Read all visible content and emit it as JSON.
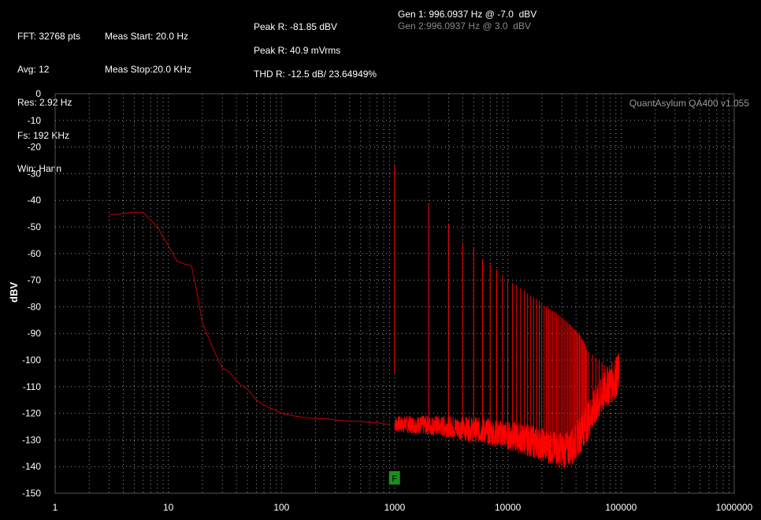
{
  "header": {
    "fft": "FFT: 32768 pts",
    "avg": "Avg: 12",
    "res": "Res: 2.92 Hz",
    "fs": "Fs: 192 KHz",
    "win": "Win: Hann",
    "meas_start": "Meas Start: 20.0 Hz",
    "meas_stop": "Meas Stop:20.0 KHz",
    "peak_dbv": "Peak R: -81.85 dBV",
    "peak_vrms": "Peak R: 40.9 mVrms",
    "thd": "THD R: -12.5 dB/ 23.64949%",
    "gen1": "Gen 1: 996.0937 Hz @ -7.0  dBV",
    "gen2": "Gen 2:996.0937 Hz @ 3.0  dBV"
  },
  "watermark": "QuantAsylum QA400 v1.055",
  "marker_label": "F",
  "chart_data": {
    "type": "line",
    "title": "",
    "xlabel": "",
    "ylabel": "dBV",
    "xscale": "log",
    "xlim": [
      1,
      1000000
    ],
    "ylim": [
      -150,
      0
    ],
    "x_ticks": [
      "1",
      "10",
      "100",
      "1000",
      "10000",
      "100000",
      "1000000"
    ],
    "y_ticks": [
      "0",
      "-10",
      "-20",
      "-30",
      "-40",
      "-50",
      "-60",
      "-70",
      "-80",
      "-90",
      "-100",
      "-110",
      "-120",
      "-130",
      "-140",
      "-150"
    ],
    "grid": true,
    "line_color": "#ff0000",
    "marker_color": "#1a8f1a",
    "series": [
      {
        "x": [
          3,
          4,
          5,
          6,
          8,
          10,
          12,
          14,
          16,
          18,
          20,
          25,
          30,
          35,
          40,
          50,
          60,
          70,
          80,
          100,
          130,
          160,
          200,
          250,
          300,
          400,
          500,
          600,
          700,
          800,
          900
        ],
        "values": [
          -45.5,
          -45,
          -44.5,
          -44.5,
          -50,
          -57,
          -63,
          -64,
          -64.5,
          -75,
          -86,
          -96,
          -103,
          -104.5,
          -108,
          -111,
          -115,
          -117,
          -118,
          -120,
          -121,
          -121.5,
          -122,
          -122,
          -122.5,
          -123,
          -123,
          -123.5,
          -123.5,
          -124,
          -124
        ]
      }
    ],
    "harmonics": [
      {
        "x": 996,
        "y": -27
      },
      {
        "x": 1992,
        "y": -41
      },
      {
        "x": 2988,
        "y": -49
      },
      {
        "x": 3984,
        "y": -56
      },
      {
        "x": 4980,
        "y": -58
      },
      {
        "x": 5977,
        "y": -62
      },
      {
        "x": 6973,
        "y": -64
      },
      {
        "x": 7969,
        "y": -66
      },
      {
        "x": 8965,
        "y": -68
      },
      {
        "x": 9961,
        "y": -70
      },
      {
        "x": 10957,
        "y": -71
      },
      {
        "x": 11953,
        "y": -72
      },
      {
        "x": 12949,
        "y": -73
      },
      {
        "x": 13945,
        "y": -74
      },
      {
        "x": 14941,
        "y": -75
      },
      {
        "x": 15937,
        "y": -76
      },
      {
        "x": 16933,
        "y": -76.5
      },
      {
        "x": 17929,
        "y": -77
      },
      {
        "x": 18926,
        "y": -78
      },
      {
        "x": 19922,
        "y": -79
      },
      {
        "x": 20918,
        "y": -79.5
      },
      {
        "x": 21914,
        "y": -80
      },
      {
        "x": 22910,
        "y": -80.5
      },
      {
        "x": 23906,
        "y": -81
      },
      {
        "x": 24902,
        "y": -81.5
      },
      {
        "x": 25898,
        "y": -82
      },
      {
        "x": 26894,
        "y": -82.5
      },
      {
        "x": 27890,
        "y": -83
      },
      {
        "x": 28886,
        "y": -83.5
      },
      {
        "x": 29882,
        "y": -84
      },
      {
        "x": 30878,
        "y": -84.5
      },
      {
        "x": 31875,
        "y": -85
      },
      {
        "x": 32871,
        "y": -85.5
      },
      {
        "x": 33867,
        "y": -86
      },
      {
        "x": 34863,
        "y": -86.5
      },
      {
        "x": 35859,
        "y": -87
      },
      {
        "x": 36855,
        "y": -87.5
      },
      {
        "x": 37851,
        "y": -88
      },
      {
        "x": 38847,
        "y": -88.5
      },
      {
        "x": 39843,
        "y": -89
      },
      {
        "x": 40839,
        "y": -89.5
      },
      {
        "x": 41835,
        "y": -90
      },
      {
        "x": 42831,
        "y": -90.5
      },
      {
        "x": 43827,
        "y": -91
      },
      {
        "x": 44823,
        "y": -92
      },
      {
        "x": 45820,
        "y": -92.5
      },
      {
        "x": 46816,
        "y": -93
      },
      {
        "x": 47812,
        "y": -94
      },
      {
        "x": 48808,
        "y": -95
      },
      {
        "x": 49804,
        "y": -96
      },
      {
        "x": 52000,
        "y": -97
      },
      {
        "x": 56000,
        "y": -98
      },
      {
        "x": 60000,
        "y": -99
      },
      {
        "x": 64000,
        "y": -100
      },
      {
        "x": 68000,
        "y": -101
      },
      {
        "x": 72000,
        "y": -102
      },
      {
        "x": 76000,
        "y": -103
      },
      {
        "x": 80000,
        "y": -104
      },
      {
        "x": 85000,
        "y": -105
      },
      {
        "x": 90000,
        "y": -106
      },
      {
        "x": 95000,
        "y": -107
      }
    ],
    "noise_floor": [
      {
        "x": 1000,
        "y": -124
      },
      {
        "x": 2000,
        "y": -124.5
      },
      {
        "x": 3000,
        "y": -125
      },
      {
        "x": 5000,
        "y": -126
      },
      {
        "x": 8000,
        "y": -127.5
      },
      {
        "x": 12000,
        "y": -129
      },
      {
        "x": 18000,
        "y": -131
      },
      {
        "x": 25000,
        "y": -133
      },
      {
        "x": 32000,
        "y": -134
      },
      {
        "x": 38000,
        "y": -132
      },
      {
        "x": 45000,
        "y": -127
      },
      {
        "x": 55000,
        "y": -120
      },
      {
        "x": 65000,
        "y": -115
      },
      {
        "x": 75000,
        "y": -110
      },
      {
        "x": 85000,
        "y": -108
      },
      {
        "x": 96000,
        "y": -105
      }
    ],
    "marker_x": 996
  }
}
